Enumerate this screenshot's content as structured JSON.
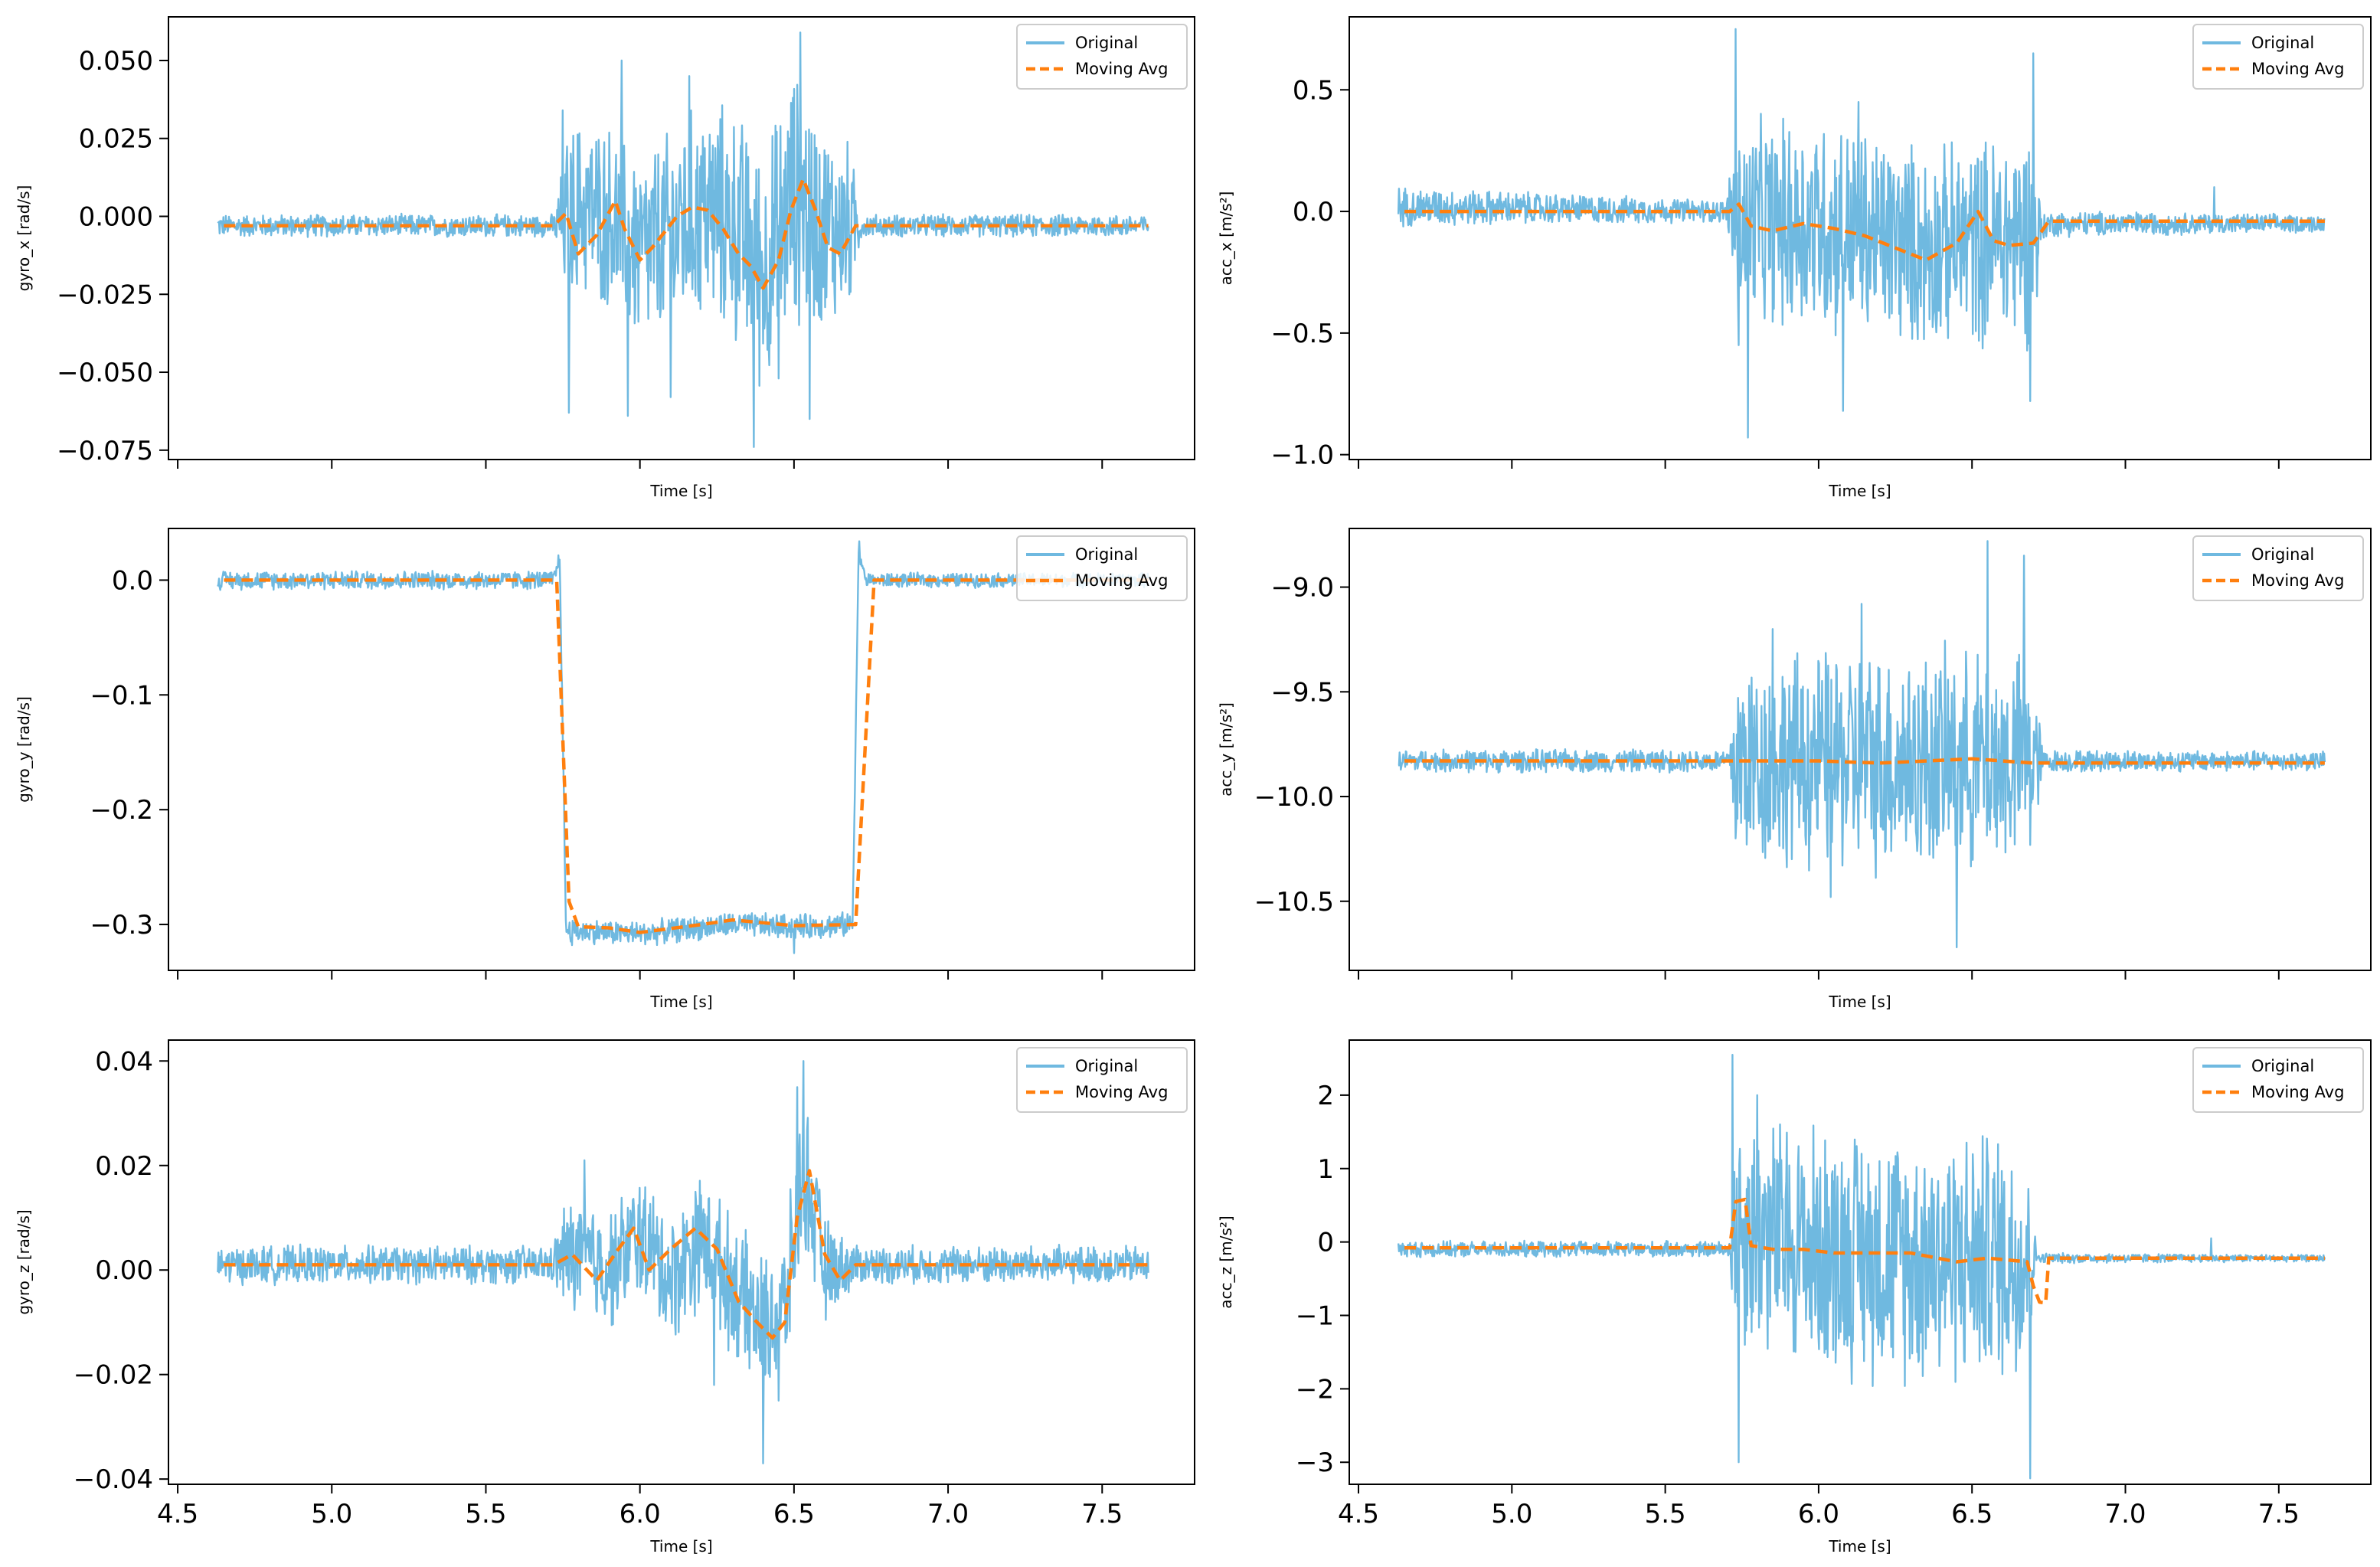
{
  "figure": {
    "x_values": [
      4.5,
      5.0,
      5.5,
      6.0,
      6.5,
      7.0,
      7.5
    ],
    "x_tick_labels": [
      "4.5",
      "5.0",
      "5.5",
      "6.0",
      "6.5",
      "7.0",
      "7.5"
    ],
    "colors": {
      "original": "#6fb9e0",
      "moving_avg": "#ff7f0e"
    }
  },
  "chart_data": [
    {
      "id": "gyro_x",
      "type": "line",
      "title": "",
      "xlabel": "Time [s]",
      "ylabel": "gyro_x [rad/s]",
      "xlim": [
        4.47,
        7.8
      ],
      "ylim": [
        -0.078,
        0.064
      ],
      "yticks": [
        0.05,
        0.025,
        0.0,
        -0.025,
        -0.05,
        -0.075
      ],
      "ytick_labels": [
        "0.050",
        "0.025",
        "0.000",
        "−0.025",
        "−0.050",
        "−0.075"
      ],
      "show_xtick_labels": false,
      "legend": {
        "location": "upper right",
        "entries": [
          "Original",
          "Moving Avg"
        ]
      },
      "series": [
        {
          "name": "Original",
          "style": "solid",
          "x": [
            4.63,
            5.73,
            5.8,
            5.9,
            6.0,
            6.1,
            6.2,
            6.3,
            6.4,
            6.5,
            6.6,
            6.7,
            7.65
          ],
          "y": [
            -0.003,
            -0.003,
            0.003,
            0.0,
            -0.012,
            -0.006,
            0.002,
            -0.002,
            -0.018,
            0.006,
            -0.004,
            -0.003,
            -0.003
          ],
          "noise": [
            [
              4.63,
              0.004
            ],
            [
              5.72,
              0.004
            ],
            [
              5.76,
              0.03
            ],
            [
              6.0,
              0.035
            ],
            [
              6.5,
              0.045
            ],
            [
              6.68,
              0.03
            ],
            [
              6.72,
              0.004
            ],
            [
              7.65,
              0.004
            ]
          ],
          "events": [
            [
              5.75,
              0.034
            ],
            [
              5.77,
              -0.063
            ],
            [
              5.94,
              0.05
            ],
            [
              5.96,
              -0.064
            ],
            [
              6.1,
              -0.058
            ],
            [
              6.16,
              0.045
            ],
            [
              6.37,
              -0.074
            ],
            [
              6.45,
              -0.052
            ],
            [
              6.52,
              0.059
            ],
            [
              6.55,
              -0.065
            ]
          ]
        },
        {
          "name": "Moving Avg",
          "style": "dashed",
          "x": [
            4.65,
            5.72,
            5.76,
            5.8,
            5.86,
            5.92,
            5.95,
            6.0,
            6.04,
            6.08,
            6.12,
            6.17,
            6.22,
            6.27,
            6.32,
            6.36,
            6.4,
            6.45,
            6.49,
            6.53,
            6.57,
            6.61,
            6.65,
            6.7,
            7.65
          ],
          "y": [
            -0.003,
            -0.003,
            0.001,
            -0.012,
            -0.006,
            0.005,
            -0.004,
            -0.014,
            -0.01,
            -0.005,
            0.0,
            0.003,
            0.002,
            -0.004,
            -0.012,
            -0.016,
            -0.023,
            -0.014,
            0.002,
            0.012,
            0.002,
            -0.01,
            -0.012,
            -0.003,
            -0.003
          ]
        }
      ]
    },
    {
      "id": "acc_x",
      "type": "line",
      "title": "",
      "xlabel": "Time [s]",
      "ylabel": "acc_x [m/s²]",
      "xlim": [
        4.47,
        7.8
      ],
      "ylim": [
        -1.02,
        0.8
      ],
      "yticks": [
        0.5,
        0.0,
        -0.5,
        -1.0
      ],
      "ytick_labels": [
        "0.5",
        "0.0",
        "−0.5",
        "−1.0"
      ],
      "show_xtick_labels": false,
      "legend": {
        "location": "upper right",
        "entries": [
          "Original",
          "Moving Avg"
        ]
      },
      "series": [
        {
          "name": "Original",
          "style": "solid",
          "x": [
            4.63,
            5.72,
            5.73,
            6.0,
            6.35,
            6.7,
            6.75,
            7.65
          ],
          "y": [
            0.02,
            0.0,
            -0.05,
            -0.05,
            -0.15,
            -0.1,
            -0.05,
            -0.05
          ],
          "noise": [
            [
              4.63,
              0.09
            ],
            [
              5.7,
              0.05
            ],
            [
              5.73,
              0.45
            ],
            [
              6.0,
              0.5
            ],
            [
              6.4,
              0.45
            ],
            [
              6.7,
              0.5
            ],
            [
              6.73,
              0.06
            ],
            [
              7.65,
              0.04
            ]
          ],
          "events": [
            [
              5.73,
              0.75
            ],
            [
              5.74,
              -0.55
            ],
            [
              5.77,
              -0.93
            ],
            [
              6.08,
              -0.82
            ],
            [
              6.13,
              0.45
            ],
            [
              6.7,
              0.65
            ],
            [
              6.69,
              -0.78
            ],
            [
              7.29,
              0.1
            ]
          ]
        },
        {
          "name": "Moving Avg",
          "style": "dashed",
          "x": [
            4.65,
            5.71,
            5.74,
            5.78,
            5.85,
            5.95,
            6.05,
            6.15,
            6.25,
            6.35,
            6.45,
            6.52,
            6.57,
            6.62,
            6.7,
            6.75,
            7.65
          ],
          "y": [
            0.0,
            0.0,
            0.03,
            -0.06,
            -0.08,
            -0.05,
            -0.07,
            -0.1,
            -0.15,
            -0.2,
            -0.13,
            0.0,
            -0.12,
            -0.14,
            -0.13,
            -0.04,
            -0.04
          ]
        }
      ]
    },
    {
      "id": "gyro_y",
      "type": "line",
      "title": "",
      "xlabel": "Time [s]",
      "ylabel": "gyro_y [rad/s]",
      "xlim": [
        4.47,
        7.8
      ],
      "ylim": [
        -0.34,
        0.045
      ],
      "yticks": [
        0.0,
        -0.1,
        -0.2,
        -0.3
      ],
      "ytick_labels": [
        "0.0",
        "−0.1",
        "−0.2",
        "−0.3"
      ],
      "show_xtick_labels": false,
      "legend": {
        "location": "upper right",
        "entries": [
          "Original",
          "Moving Avg"
        ]
      },
      "series": [
        {
          "name": "Original",
          "style": "solid",
          "x": [
            4.63,
            5.72,
            5.74,
            5.76,
            6.0,
            6.3,
            6.5,
            6.69,
            6.71,
            6.73,
            7.65
          ],
          "y": [
            0.0,
            0.0,
            0.02,
            -0.305,
            -0.308,
            -0.3,
            -0.302,
            -0.3,
            0.03,
            0.0,
            0.0
          ],
          "noise": [
            [
              4.63,
              0.009
            ],
            [
              5.72,
              0.009
            ],
            [
              5.76,
              0.012
            ],
            [
              6.69,
              0.012
            ],
            [
              6.73,
              0.007
            ],
            [
              7.65,
              0.007
            ]
          ],
          "events": [
            [
              5.78,
              -0.318
            ],
            [
              6.5,
              -0.325
            ]
          ]
        },
        {
          "name": "Moving Avg",
          "style": "dashed",
          "x": [
            4.65,
            5.73,
            5.77,
            5.8,
            5.9,
            6.0,
            6.2,
            6.3,
            6.5,
            6.7,
            6.76,
            7.65
          ],
          "y": [
            0.0,
            0.0,
            -0.28,
            -0.302,
            -0.303,
            -0.307,
            -0.3,
            -0.296,
            -0.301,
            -0.3,
            0.0,
            0.0
          ]
        }
      ]
    },
    {
      "id": "acc_y",
      "type": "line",
      "title": "",
      "xlabel": "Time [s]",
      "ylabel": "acc_y [m/s²]",
      "xlim": [
        4.47,
        7.8
      ],
      "ylim": [
        -10.83,
        -8.72
      ],
      "yticks": [
        -9.0,
        -9.5,
        -10.0,
        -10.5
      ],
      "ytick_labels": [
        "−9.0",
        "−9.5",
        "−10.0",
        "−10.5"
      ],
      "show_xtick_labels": false,
      "legend": {
        "location": "upper right",
        "entries": [
          "Original",
          "Moving Avg"
        ]
      },
      "series": [
        {
          "name": "Original",
          "style": "solid",
          "x": [
            4.63,
            5.72,
            5.73,
            6.7,
            6.73,
            7.65
          ],
          "y": [
            -9.83,
            -9.83,
            -9.83,
            -9.83,
            -9.83,
            -9.83
          ],
          "noise": [
            [
              4.63,
              0.06
            ],
            [
              5.71,
              0.06
            ],
            [
              5.73,
              0.55
            ],
            [
              6.2,
              0.6
            ],
            [
              6.7,
              0.55
            ],
            [
              6.73,
              0.06
            ],
            [
              7.65,
              0.05
            ]
          ],
          "events": [
            [
              5.73,
              -10.2
            ],
            [
              6.55,
              -8.78
            ],
            [
              6.67,
              -8.85
            ],
            [
              6.45,
              -10.72
            ],
            [
              6.04,
              -10.48
            ],
            [
              6.14,
              -9.08
            ],
            [
              5.85,
              -9.2
            ]
          ]
        },
        {
          "name": "Moving Avg",
          "style": "dashed",
          "x": [
            4.65,
            5.72,
            6.0,
            6.2,
            6.5,
            6.7,
            7.65
          ],
          "y": [
            -9.83,
            -9.83,
            -9.83,
            -9.84,
            -9.82,
            -9.84,
            -9.84
          ]
        }
      ]
    },
    {
      "id": "gyro_z",
      "type": "line",
      "title": "",
      "xlabel": "Time [s]",
      "ylabel": "gyro_z [rad/s]",
      "xlim": [
        4.47,
        7.8
      ],
      "ylim": [
        -0.041,
        0.044
      ],
      "yticks": [
        0.04,
        0.02,
        0.0,
        -0.02,
        -0.04
      ],
      "ytick_labels": [
        "0.04",
        "0.02",
        "0.00",
        "−0.02",
        "−0.04"
      ],
      "show_xtick_labels": true,
      "legend": {
        "location": "upper right",
        "entries": [
          "Original",
          "Moving Avg"
        ]
      },
      "series": [
        {
          "name": "Original",
          "style": "solid",
          "x": [
            4.63,
            5.7,
            5.8,
            5.9,
            6.0,
            6.1,
            6.2,
            6.3,
            6.4,
            6.47,
            6.53,
            6.6,
            6.7,
            7.65
          ],
          "y": [
            0.001,
            0.001,
            0.003,
            0.0,
            0.007,
            -0.002,
            0.006,
            -0.003,
            -0.011,
            -0.008,
            0.02,
            0.0,
            0.001,
            0.001
          ],
          "noise": [
            [
              4.63,
              0.004
            ],
            [
              5.72,
              0.004
            ],
            [
              5.75,
              0.012
            ],
            [
              6.2,
              0.014
            ],
            [
              6.45,
              0.015
            ],
            [
              6.55,
              0.016
            ],
            [
              6.65,
              0.007
            ],
            [
              6.72,
              0.004
            ],
            [
              7.65,
              0.004
            ]
          ],
          "events": [
            [
              6.4,
              -0.037
            ],
            [
              6.53,
              0.04
            ],
            [
              6.51,
              0.035
            ],
            [
              6.45,
              -0.025
            ],
            [
              6.24,
              -0.022
            ],
            [
              5.82,
              0.021
            ]
          ]
        },
        {
          "name": "Moving Avg",
          "style": "dashed",
          "x": [
            4.65,
            5.72,
            5.78,
            5.86,
            5.93,
            5.98,
            6.03,
            6.1,
            6.18,
            6.25,
            6.32,
            6.38,
            6.43,
            6.47,
            6.51,
            6.55,
            6.6,
            6.65,
            6.7,
            7.65
          ],
          "y": [
            0.001,
            0.001,
            0.003,
            -0.002,
            0.004,
            0.008,
            0.0,
            0.004,
            0.008,
            0.004,
            -0.006,
            -0.01,
            -0.013,
            -0.01,
            0.01,
            0.019,
            0.003,
            -0.002,
            0.001,
            0.001
          ]
        }
      ]
    },
    {
      "id": "acc_z",
      "type": "line",
      "title": "",
      "xlabel": "Time [s]",
      "ylabel": "acc_z [m/s²]",
      "xlim": [
        4.47,
        7.8
      ],
      "ylim": [
        -3.3,
        2.75
      ],
      "yticks": [
        2,
        1,
        0,
        -1,
        -2,
        -3
      ],
      "ytick_labels": [
        "2",
        "1",
        "0",
        "−1",
        "−2",
        "−3"
      ],
      "show_xtick_labels": true,
      "legend": {
        "location": "upper right",
        "entries": [
          "Original",
          "Moving Avg"
        ]
      },
      "series": [
        {
          "name": "Original",
          "style": "solid",
          "x": [
            4.63,
            5.72,
            5.73,
            6.0,
            6.3,
            6.7,
            6.73,
            7.65
          ],
          "y": [
            -0.1,
            -0.1,
            0.2,
            -0.1,
            -0.2,
            -0.2,
            -0.22,
            -0.22
          ],
          "noise": [
            [
              4.63,
              0.12
            ],
            [
              5.71,
              0.12
            ],
            [
              5.73,
              1.8
            ],
            [
              6.2,
              1.9
            ],
            [
              6.68,
              1.9
            ],
            [
              6.71,
              0.08
            ],
            [
              7.65,
              0.05
            ]
          ],
          "events": [
            [
              5.72,
              2.55
            ],
            [
              5.74,
              -3.0
            ],
            [
              6.69,
              -3.22
            ],
            [
              5.8,
              2.0
            ],
            [
              7.28,
              0.05
            ]
          ]
        },
        {
          "name": "Moving Avg",
          "style": "dashed",
          "x": [
            4.65,
            5.71,
            5.73,
            5.76,
            5.78,
            5.85,
            5.95,
            6.05,
            6.2,
            6.3,
            6.45,
            6.55,
            6.68,
            6.7,
            6.72,
            6.74,
            6.75,
            7.65
          ],
          "y": [
            -0.08,
            -0.08,
            0.55,
            0.58,
            -0.05,
            -0.1,
            -0.1,
            -0.15,
            -0.15,
            -0.15,
            -0.27,
            -0.22,
            -0.27,
            -0.6,
            -0.82,
            -0.83,
            -0.22,
            -0.22
          ]
        }
      ]
    }
  ]
}
